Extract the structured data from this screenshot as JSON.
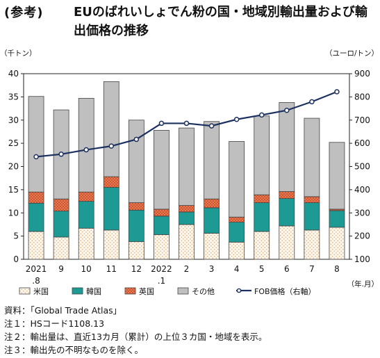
{
  "title": {
    "prefix": "(参考)",
    "text": "EUのばれいしょでん粉の国・地域別輸出量および輸出価格の推移"
  },
  "chart_data": {
    "type": "bar",
    "stacked": true,
    "left_axis_unit": "（千トン）",
    "right_axis_unit": "（ユーロ/トン）",
    "x_unit": "（年.月）",
    "ylim_left": [
      0,
      40
    ],
    "yticks_left": [
      0,
      5,
      10,
      15,
      20,
      25,
      30,
      35,
      40
    ],
    "ylim_right": [
      100,
      900
    ],
    "yticks_right": [
      100,
      200,
      300,
      400,
      500,
      600,
      700,
      800,
      900
    ],
    "categories": [
      [
        "2021",
        ".8"
      ],
      [
        "9",
        ""
      ],
      [
        "10",
        ""
      ],
      [
        "11",
        ""
      ],
      [
        "12",
        ""
      ],
      [
        "2022",
        ".1"
      ],
      [
        "2",
        ""
      ],
      [
        "3",
        ""
      ],
      [
        "4",
        ""
      ],
      [
        "5",
        ""
      ],
      [
        "6",
        ""
      ],
      [
        "7",
        ""
      ],
      [
        "8",
        ""
      ]
    ],
    "series": [
      {
        "name": "米国",
        "values": [
          6.0,
          4.8,
          6.7,
          6.3,
          3.8,
          5.3,
          7.5,
          5.6,
          3.7,
          6.0,
          7.2,
          6.3,
          6.9
        ]
      },
      {
        "name": "韓国",
        "values": [
          6.1,
          5.6,
          5.8,
          9.2,
          6.8,
          4.0,
          2.7,
          5.5,
          4.3,
          6.2,
          5.9,
          5.9,
          3.6
        ]
      },
      {
        "name": "英国",
        "values": [
          2.4,
          2.6,
          2.0,
          2.3,
          1.6,
          1.5,
          1.4,
          1.9,
          1.1,
          1.7,
          1.5,
          1.3,
          0.3
        ]
      },
      {
        "name": "その他",
        "values": [
          20.6,
          19.2,
          20.2,
          20.5,
          17.8,
          17.0,
          16.7,
          16.7,
          16.3,
          17.0,
          19.2,
          16.9,
          14.4
        ]
      }
    ],
    "line_series": {
      "name": "FOB価格（右軸）",
      "values": [
        542,
        553,
        572,
        588,
        617,
        686,
        686,
        675,
        703,
        722,
        742,
        779,
        822
      ]
    },
    "colors": {
      "米国": "#fdf6ec",
      "米国_dots": "#d9a96a",
      "韓国": "#1d9a93",
      "英国": "#d4552b",
      "英国_dots": "#f3b59b",
      "その他": "#bfbfbf",
      "line": "#1c3160",
      "bar_stroke": "#444444"
    },
    "legend_position": "bottom"
  },
  "notes": [
    "資料：「Global Trade Atlas」",
    "注１：HSコード1108.13",
    "注２：輸出量は、直近13カ月（累計）の上位３カ国・地域を表示。",
    "注３：輸出先の不明なものを除く。"
  ]
}
